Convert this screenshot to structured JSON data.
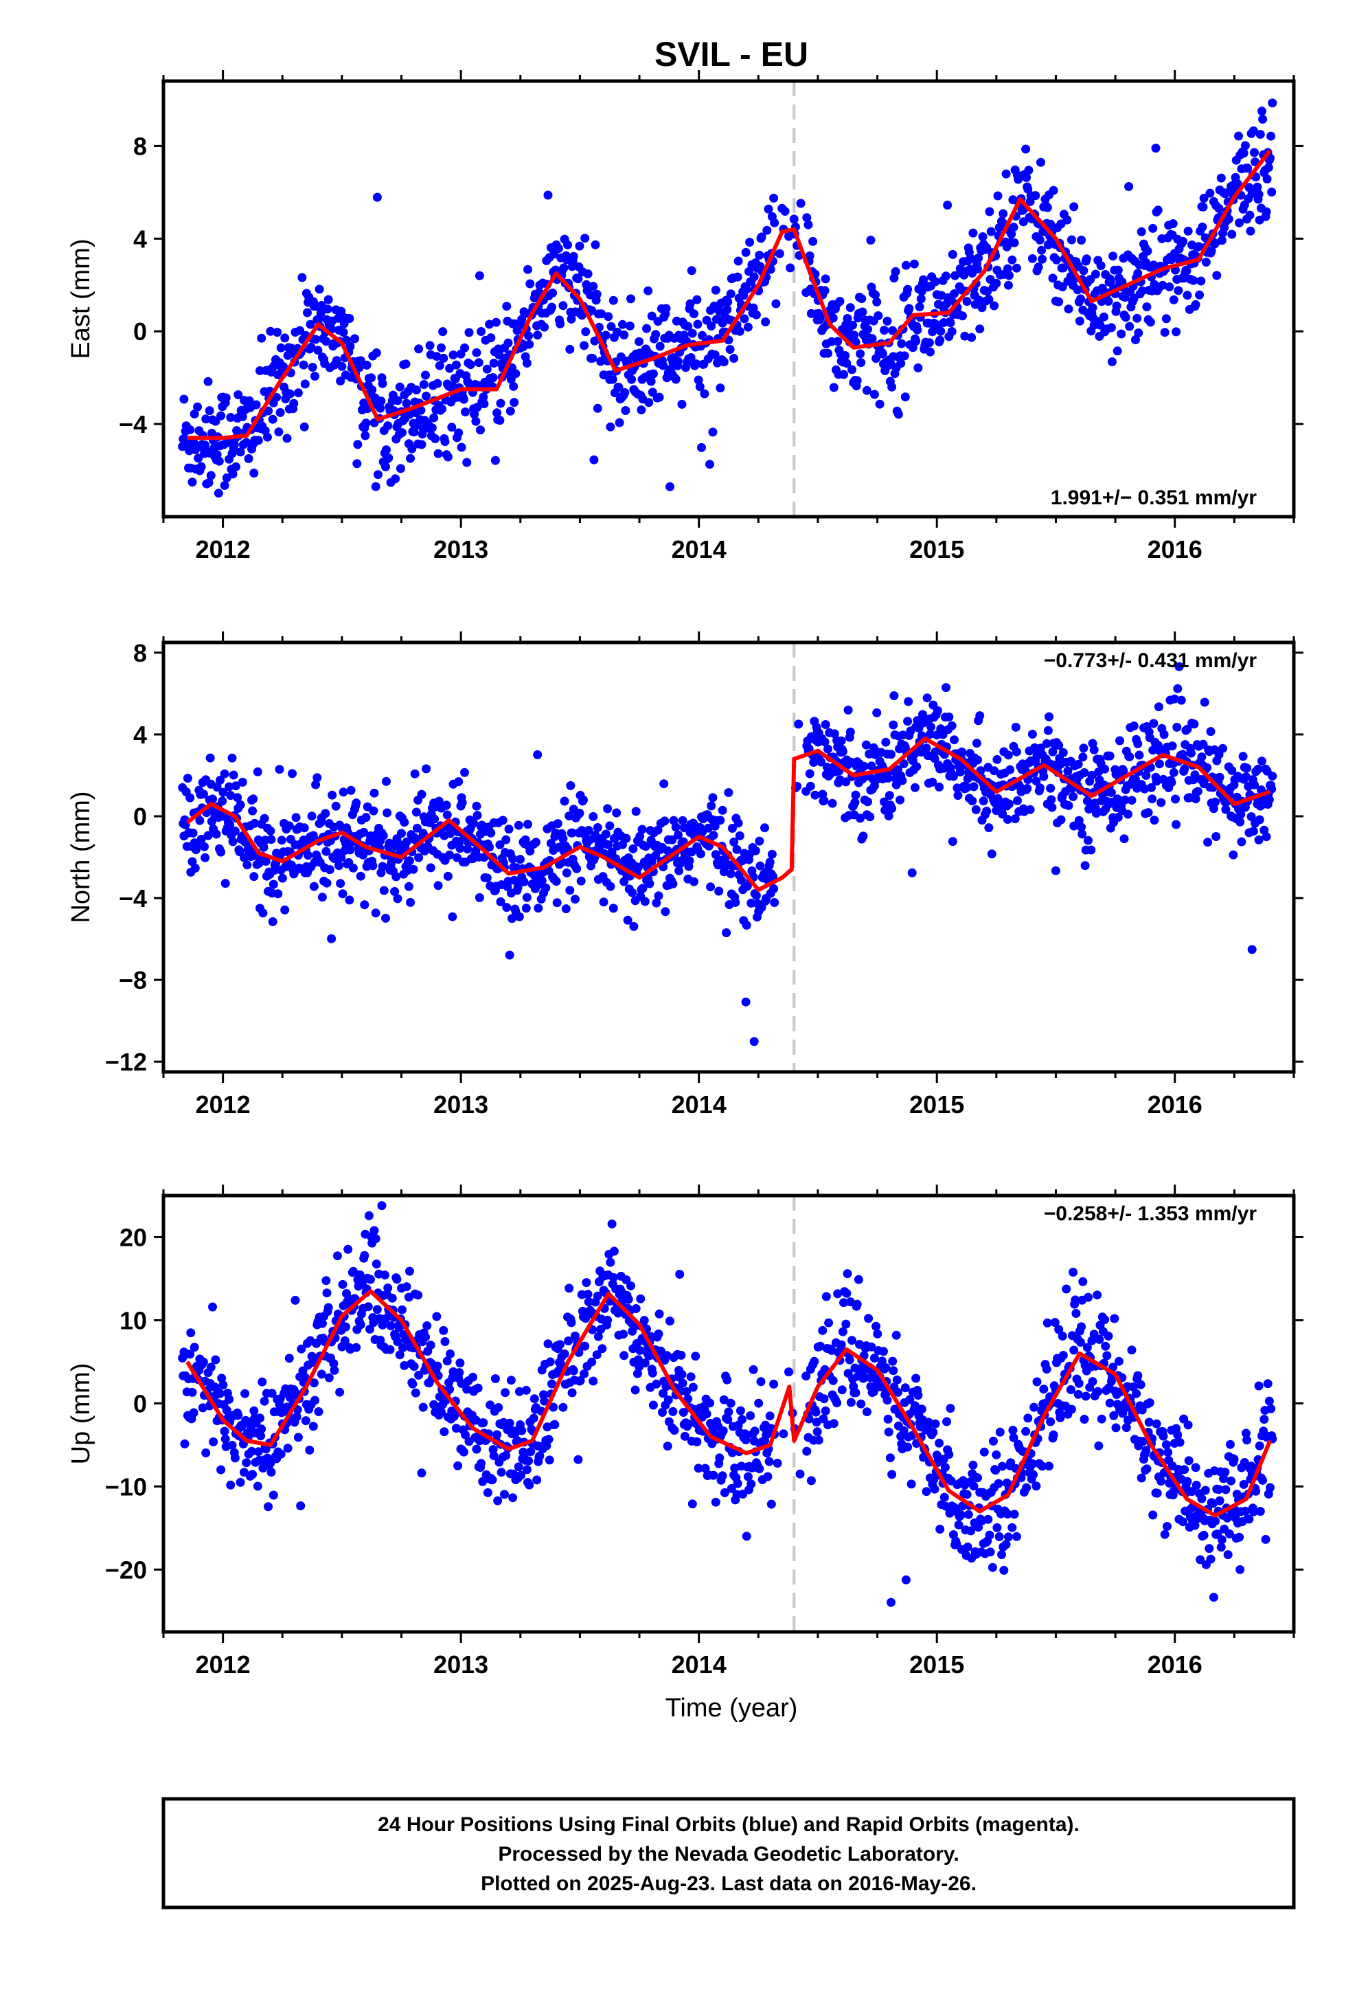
{
  "figure": {
    "title": "SVIL - EU",
    "xlabel": "Time (year)",
    "footer_lines": [
      "24 Hour Positions Using Final Orbits (blue) and Rapid Orbits (magenta).",
      "Processed by the Nevada Geodetic Laboratory.",
      "Plotted on 2025-Aug-23. Last data on 2016-May-26."
    ],
    "colors": {
      "final_points": "#0000ff",
      "model_fit": "#ff0000",
      "offset_line": "#c8c8c8",
      "frame": "#000000"
    }
  },
  "chart_data": [
    {
      "type": "scatter",
      "panel": "east",
      "ylabel": "East (mm)",
      "rate_label": "1.991+/- 0.351 mm/yr",
      "xlim": [
        2011.75,
        2016.5
      ],
      "ylim": [
        -8,
        10.8
      ],
      "x_ticks": [
        2012,
        2013,
        2014,
        2015,
        2016
      ],
      "y_ticks": [
        8,
        4,
        0,
        -4
      ],
      "offset_epoch": 2014.4,
      "series": [
        {
          "role": "points",
          "mean_curve": [
            [
              2011.85,
              -4.6
            ],
            [
              2012.0,
              -4.6
            ],
            [
              2012.1,
              -4.5
            ],
            [
              2012.25,
              -2.0
            ],
            [
              2012.4,
              0.3
            ],
            [
              2012.5,
              -0.5
            ],
            [
              2012.65,
              -3.8
            ],
            [
              2012.8,
              -3.3
            ],
            [
              2013.0,
              -2.5
            ],
            [
              2013.15,
              -2.5
            ],
            [
              2013.3,
              0.8
            ],
            [
              2013.4,
              2.5
            ],
            [
              2013.5,
              1.4
            ],
            [
              2013.65,
              -1.7
            ],
            [
              2013.8,
              -1.2
            ],
            [
              2013.95,
              -0.6
            ],
            [
              2014.1,
              -0.4
            ],
            [
              2014.25,
              2.0
            ],
            [
              2014.35,
              4.3
            ],
            [
              2014.4,
              4.4
            ],
            [
              2014.45,
              3.0
            ],
            [
              2014.55,
              0.3
            ],
            [
              2014.65,
              -0.7
            ],
            [
              2014.8,
              -0.5
            ],
            [
              2014.9,
              0.7
            ],
            [
              2015.05,
              0.8
            ],
            [
              2015.2,
              2.6
            ],
            [
              2015.35,
              5.7
            ],
            [
              2015.5,
              4.0
            ],
            [
              2015.65,
              1.3
            ],
            [
              2015.8,
              2.0
            ],
            [
              2015.95,
              2.7
            ],
            [
              2016.1,
              3.1
            ],
            [
              2016.25,
              5.8
            ],
            [
              2016.4,
              7.8
            ]
          ],
          "scatter_sd": 1.2
        },
        {
          "role": "model_fit",
          "x": [
            2011.85,
            2012.0,
            2012.1,
            2012.25,
            2012.4,
            2012.5,
            2012.65,
            2012.8,
            2013.0,
            2013.15,
            2013.3,
            2013.4,
            2013.5,
            2013.65,
            2013.8,
            2013.95,
            2014.1,
            2014.25,
            2014.35,
            2014.4,
            2014.45,
            2014.55,
            2014.65,
            2014.8,
            2014.9,
            2015.05,
            2015.2,
            2015.35,
            2015.5,
            2015.65,
            2015.8,
            2015.95,
            2016.1,
            2016.25,
            2016.4
          ],
          "y": [
            -4.6,
            -4.6,
            -4.5,
            -2.0,
            0.3,
            -0.5,
            -3.8,
            -3.3,
            -2.5,
            -2.5,
            0.8,
            2.5,
            1.4,
            -1.7,
            -1.2,
            -0.6,
            -0.4,
            2.0,
            4.3,
            4.4,
            3.0,
            0.3,
            -0.7,
            -0.5,
            0.7,
            0.8,
            2.6,
            5.7,
            4.0,
            1.3,
            2.0,
            2.7,
            3.1,
            5.8,
            7.8
          ]
        }
      ]
    },
    {
      "type": "scatter",
      "panel": "north",
      "ylabel": "North (mm)",
      "rate_label": "-0.773+/- 0.431 mm/yr",
      "xlim": [
        2011.75,
        2016.5
      ],
      "ylim": [
        -12.5,
        8.5
      ],
      "x_ticks": [
        2012,
        2013,
        2014,
        2015,
        2016
      ],
      "y_ticks": [
        8,
        4,
        0,
        -4,
        -8,
        -12
      ],
      "offset_epoch": 2014.4,
      "series": [
        {
          "role": "points",
          "mean_curve": [
            [
              2011.85,
              -0.3
            ],
            [
              2011.95,
              0.6
            ],
            [
              2012.05,
              0.0
            ],
            [
              2012.15,
              -1.8
            ],
            [
              2012.25,
              -2.2
            ],
            [
              2012.4,
              -1.2
            ],
            [
              2012.5,
              -0.8
            ],
            [
              2012.6,
              -1.5
            ],
            [
              2012.75,
              -2.0
            ],
            [
              2012.95,
              -0.2
            ],
            [
              2013.1,
              -1.7
            ],
            [
              2013.2,
              -2.8
            ],
            [
              2013.35,
              -2.5
            ],
            [
              2013.5,
              -1.5
            ],
            [
              2013.6,
              -2.0
            ],
            [
              2013.75,
              -3.0
            ],
            [
              2013.9,
              -1.8
            ],
            [
              2014.0,
              -1.0
            ],
            [
              2014.1,
              -1.5
            ],
            [
              2014.25,
              -3.6
            ],
            [
              2014.35,
              -3.0
            ],
            [
              2014.39,
              -2.6
            ],
            [
              2014.4,
              2.8
            ],
            [
              2014.5,
              3.2
            ],
            [
              2014.65,
              2.0
            ],
            [
              2014.8,
              2.3
            ],
            [
              2014.95,
              3.8
            ],
            [
              2015.1,
              2.8
            ],
            [
              2015.25,
              1.2
            ],
            [
              2015.45,
              2.5
            ],
            [
              2015.65,
              1.0
            ],
            [
              2015.8,
              2.0
            ],
            [
              2015.95,
              3.0
            ],
            [
              2016.1,
              2.4
            ],
            [
              2016.25,
              0.6
            ],
            [
              2016.4,
              1.2
            ]
          ],
          "scatter_sd": 1.2
        },
        {
          "role": "model_fit",
          "x": [
            2011.85,
            2011.95,
            2012.05,
            2012.15,
            2012.25,
            2012.4,
            2012.5,
            2012.6,
            2012.75,
            2012.95,
            2013.1,
            2013.2,
            2013.35,
            2013.5,
            2013.6,
            2013.75,
            2013.9,
            2014.0,
            2014.1,
            2014.25,
            2014.35,
            2014.39,
            2014.4,
            2014.5,
            2014.65,
            2014.8,
            2014.95,
            2015.1,
            2015.25,
            2015.45,
            2015.65,
            2015.8,
            2015.95,
            2016.1,
            2016.25,
            2016.4
          ],
          "y": [
            -0.3,
            0.6,
            0.0,
            -1.8,
            -2.2,
            -1.2,
            -0.8,
            -1.5,
            -2.0,
            -0.2,
            -1.7,
            -2.8,
            -2.5,
            -1.5,
            -2.0,
            -3.0,
            -1.8,
            -1.0,
            -1.5,
            -3.6,
            -3.0,
            -2.6,
            2.8,
            3.2,
            2.0,
            2.3,
            3.8,
            2.8,
            1.2,
            2.5,
            1.0,
            2.0,
            3.0,
            2.4,
            0.6,
            1.2
          ]
        }
      ]
    },
    {
      "type": "scatter",
      "panel": "up",
      "ylabel": "Up (mm)",
      "rate_label": "-0.258+/- 1.353 mm/yr",
      "xlim": [
        2011.75,
        2016.5
      ],
      "ylim": [
        -27.5,
        25
      ],
      "x_ticks": [
        2012,
        2013,
        2014,
        2015,
        2016
      ],
      "y_ticks": [
        20,
        10,
        0,
        -10,
        -20
      ],
      "offset_epoch": 2014.4,
      "series": [
        {
          "role": "points",
          "mean_curve": [
            [
              2011.85,
              5.0
            ],
            [
              2012.0,
              -2.0
            ],
            [
              2012.1,
              -4.5
            ],
            [
              2012.2,
              -5.0
            ],
            [
              2012.35,
              2.0
            ],
            [
              2012.5,
              10.5
            ],
            [
              2012.62,
              13.5
            ],
            [
              2012.75,
              10.0
            ],
            [
              2012.9,
              2.5
            ],
            [
              2013.05,
              -3.0
            ],
            [
              2013.2,
              -5.5
            ],
            [
              2013.3,
              -4.5
            ],
            [
              2013.45,
              5.0
            ],
            [
              2013.62,
              13.2
            ],
            [
              2013.75,
              9.5
            ],
            [
              2013.9,
              1.5
            ],
            [
              2014.05,
              -4.0
            ],
            [
              2014.2,
              -6.0
            ],
            [
              2014.3,
              -5.0
            ],
            [
              2014.38,
              2.0
            ],
            [
              2014.4,
              -4.5
            ],
            [
              2014.5,
              2.0
            ],
            [
              2014.62,
              6.5
            ],
            [
              2014.75,
              4.0
            ],
            [
              2014.9,
              -3.0
            ],
            [
              2015.05,
              -10.5
            ],
            [
              2015.18,
              -13.0
            ],
            [
              2015.3,
              -11.0
            ],
            [
              2015.45,
              -1.5
            ],
            [
              2015.6,
              6.0
            ],
            [
              2015.75,
              3.5
            ],
            [
              2015.9,
              -5.0
            ],
            [
              2016.05,
              -11.5
            ],
            [
              2016.17,
              -13.5
            ],
            [
              2016.3,
              -11.5
            ],
            [
              2016.4,
              -4.5
            ]
          ],
          "scatter_sd": 3.5
        },
        {
          "role": "model_fit",
          "x": [
            2011.85,
            2012.0,
            2012.1,
            2012.2,
            2012.35,
            2012.5,
            2012.62,
            2012.75,
            2012.9,
            2013.05,
            2013.2,
            2013.3,
            2013.45,
            2013.62,
            2013.75,
            2013.9,
            2014.05,
            2014.2,
            2014.3,
            2014.38,
            2014.4,
            2014.5,
            2014.62,
            2014.75,
            2014.9,
            2015.05,
            2015.18,
            2015.3,
            2015.45,
            2015.6,
            2015.75,
            2015.9,
            2016.05,
            2016.17,
            2016.3,
            2016.4
          ],
          "y": [
            5.0,
            -2.0,
            -4.5,
            -5.0,
            2.0,
            10.5,
            13.5,
            10.0,
            2.5,
            -3.0,
            -5.5,
            -4.5,
            5.0,
            13.2,
            9.5,
            1.5,
            -4.0,
            -6.0,
            -5.0,
            2.0,
            -4.5,
            2.0,
            6.5,
            4.0,
            -3.0,
            -10.5,
            -13.0,
            -11.0,
            -1.5,
            6.0,
            3.5,
            -5.0,
            -11.5,
            -13.5,
            -11.5,
            -4.5
          ]
        }
      ]
    }
  ]
}
